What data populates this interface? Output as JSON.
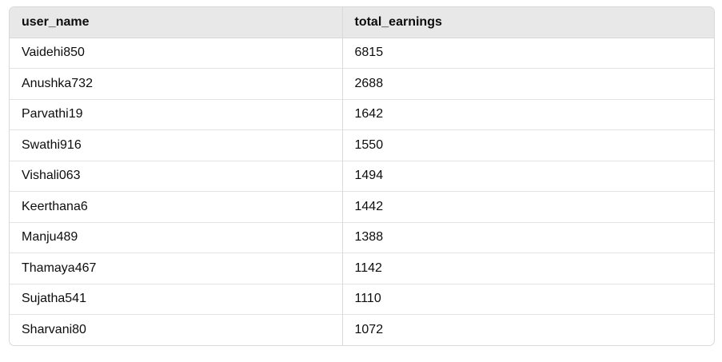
{
  "table": {
    "headers": [
      "user_name",
      "total_earnings"
    ],
    "rows": [
      [
        "Vaidehi850",
        "6815"
      ],
      [
        "Anushka732",
        "2688"
      ],
      [
        "Parvathi19",
        "1642"
      ],
      [
        "Swathi916",
        "1550"
      ],
      [
        "Vishali063",
        "1494"
      ],
      [
        "Keerthana6",
        "1442"
      ],
      [
        "Manju489",
        "1388"
      ],
      [
        "Thamaya467",
        "1142"
      ],
      [
        "Sujatha541",
        "1110"
      ],
      [
        "Sharvani80",
        "1072"
      ]
    ]
  }
}
